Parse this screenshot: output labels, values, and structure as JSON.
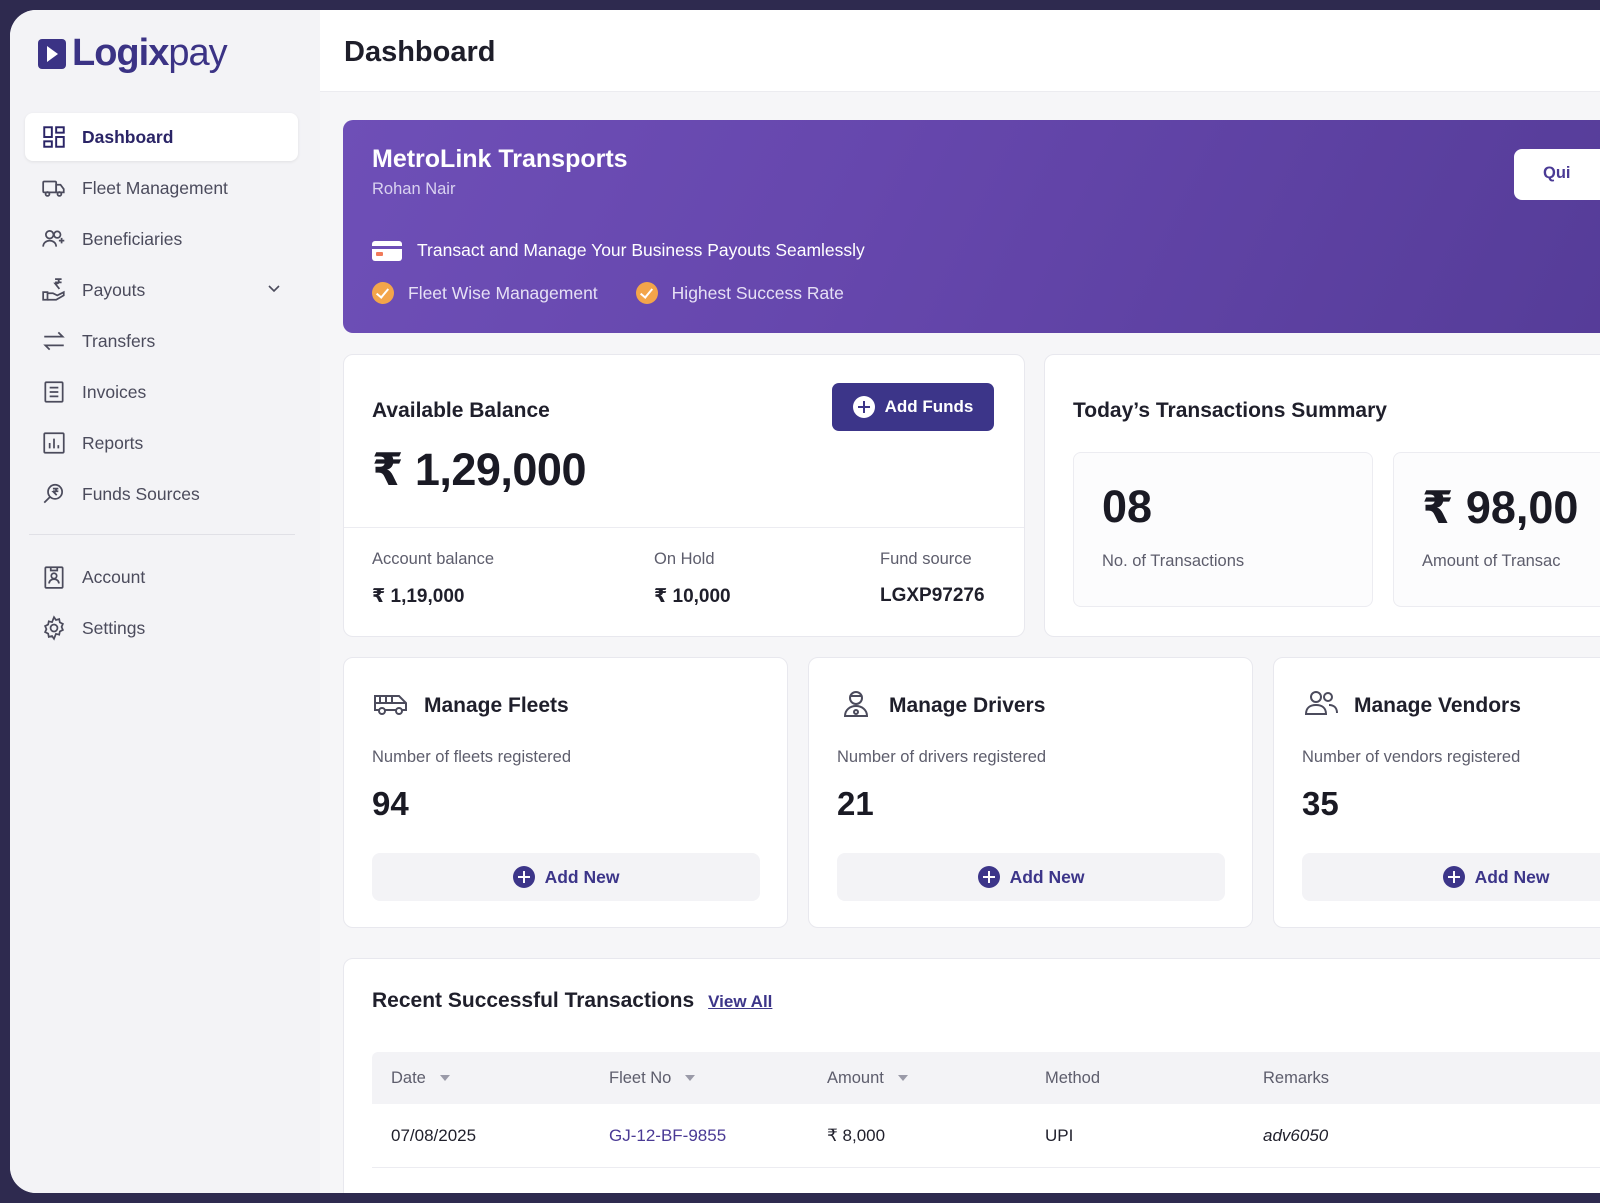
{
  "brand": {
    "name_bold": "Logix",
    "name_light": "pay"
  },
  "sidebar": {
    "items": [
      {
        "label": "Dashboard",
        "icon": "dashboard-grid-icon",
        "active": true
      },
      {
        "label": "Fleet Management",
        "icon": "truck-icon"
      },
      {
        "label": "Beneficiaries",
        "icon": "users-plus-icon"
      },
      {
        "label": "Payouts",
        "icon": "rupee-hand-icon",
        "expandable": true
      },
      {
        "label": "Transfers",
        "icon": "arrows-swap-icon"
      },
      {
        "label": "Invoices",
        "icon": "invoice-list-icon"
      },
      {
        "label": "Reports",
        "icon": "bar-report-icon"
      },
      {
        "label": "Funds Sources",
        "icon": "rupee-search-icon"
      }
    ],
    "secondary": [
      {
        "label": "Account",
        "icon": "id-badge-icon"
      },
      {
        "label": "Settings",
        "icon": "gear-icon"
      }
    ]
  },
  "header": {
    "title": "Dashboard"
  },
  "banner": {
    "company": "MetroLink Transports",
    "user": "Rohan Nair",
    "tagline": "Transact and Manage Your Business Payouts Seamlessly",
    "features": [
      "Fleet Wise Management",
      "Highest Success Rate"
    ],
    "quick_button": "Qui"
  },
  "balance": {
    "title": "Available Balance",
    "amount": "₹ 1,29,000",
    "add_funds": "Add Funds",
    "account_balance_label": "Account balance",
    "account_balance": "₹ 1,19,000",
    "on_hold_label": "On Hold",
    "on_hold": "₹ 10,000",
    "fund_source_label": "Fund source",
    "fund_source": "LGXP97276"
  },
  "summary": {
    "title": "Today’s Transactions Summary",
    "count": "08",
    "count_label": "No. of Transactions",
    "amount": "₹ 98,00",
    "amount_label": "Amount of Transac"
  },
  "manage": [
    {
      "title": "Manage Fleets",
      "sub": "Number of fleets registered",
      "count": "94",
      "button": "Add New",
      "icon": "van-icon"
    },
    {
      "title": "Manage Drivers",
      "sub": "Number of drivers registered",
      "count": "21",
      "button": "Add New",
      "icon": "driver-icon"
    },
    {
      "title": "Manage Vendors",
      "sub": "Number of vendors registered",
      "count": "35",
      "button": "Add New",
      "icon": "vendors-icon"
    }
  ],
  "recent": {
    "title": "Recent Successful Transactions",
    "view_all": "View All",
    "columns": [
      "Date",
      "Fleet No",
      "Amount",
      "Method",
      "Remarks"
    ],
    "rows": [
      {
        "date": "07/08/2025",
        "fleet": "GJ-12-BF-9855",
        "amount": "₹ 8,000",
        "method": "UPI",
        "remarks": "adv6050"
      }
    ]
  },
  "colors": {
    "accent": "#3c3589",
    "banner": "#6647ad",
    "check": "#f3a54a"
  }
}
